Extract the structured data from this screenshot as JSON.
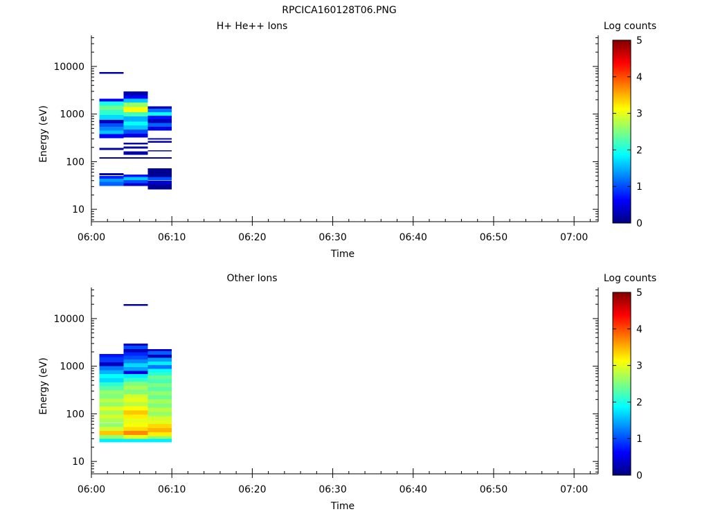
{
  "figure": {
    "title": "RPCICA160128T06.PNG"
  },
  "colorbar": {
    "label": "Log counts",
    "ticks": [
      "0",
      "1",
      "2",
      "3",
      "4",
      "5"
    ],
    "range": [
      0,
      5
    ],
    "colormap": [
      "#00007f",
      "#0000ff",
      "#007fff",
      "#00ffff",
      "#7fff7f",
      "#ffff00",
      "#ff7f00",
      "#ff0000",
      "#7f0000"
    ]
  },
  "chart_data": [
    {
      "type": "heatmap",
      "title": "H+ He++ Ions",
      "xlabel": "Time",
      "ylabel": "Energy (eV)",
      "yscale": "log",
      "ylim": [
        5.5,
        45000
      ],
      "xlim": [
        "06:00",
        "07:03"
      ],
      "xticks": [
        "06:00",
        "06:10",
        "06:20",
        "06:30",
        "06:40",
        "06:50",
        "07:00"
      ],
      "yticks": [
        "10",
        "100",
        "1000",
        "10000"
      ],
      "z_label": "Log counts",
      "z_range": [
        0,
        5
      ],
      "columns": [
        {
          "t_start": "06:01",
          "t_end": "06:04",
          "cells": [
            {
              "e_lo": 7000,
              "e_hi": 7600,
              "z": 0.2
            },
            {
              "e_lo": 1850,
              "e_hi": 2100,
              "z": 0.6
            },
            {
              "e_lo": 1500,
              "e_hi": 1850,
              "z": 2.0
            },
            {
              "e_lo": 1200,
              "e_hi": 1500,
              "z": 2.4
            },
            {
              "e_lo": 950,
              "e_hi": 1200,
              "z": 2.1
            },
            {
              "e_lo": 760,
              "e_hi": 950,
              "z": 1.7
            },
            {
              "e_lo": 640,
              "e_hi": 760,
              "z": 0.3
            },
            {
              "e_lo": 540,
              "e_hi": 640,
              "z": 1.0
            },
            {
              "e_lo": 450,
              "e_hi": 540,
              "z": 1.3
            },
            {
              "e_lo": 380,
              "e_hi": 450,
              "z": 1.6
            },
            {
              "e_lo": 310,
              "e_hi": 380,
              "z": 0.6
            },
            {
              "e_lo": 175,
              "e_hi": 195,
              "z": 0.2
            },
            {
              "e_lo": 116,
              "e_hi": 124,
              "z": 0.2
            },
            {
              "e_lo": 52,
              "e_hi": 57,
              "z": 0.3
            },
            {
              "e_lo": 44,
              "e_hi": 50,
              "z": 0.8
            },
            {
              "e_lo": 38,
              "e_hi": 44,
              "z": 1.4
            },
            {
              "e_lo": 31,
              "e_hi": 38,
              "z": 1.1
            }
          ]
        },
        {
          "t_start": "06:04",
          "t_end": "06:07",
          "cells": [
            {
              "e_lo": 2500,
              "e_hi": 3000,
              "z": 0.2
            },
            {
              "e_lo": 2100,
              "e_hi": 2500,
              "z": 0.6
            },
            {
              "e_lo": 1750,
              "e_hi": 2100,
              "z": 1.6
            },
            {
              "e_lo": 1400,
              "e_hi": 1750,
              "z": 2.6
            },
            {
              "e_lo": 1100,
              "e_hi": 1400,
              "z": 3.1
            },
            {
              "e_lo": 900,
              "e_hi": 1100,
              "z": 2.2
            },
            {
              "e_lo": 700,
              "e_hi": 900,
              "z": 1.5
            },
            {
              "e_lo": 580,
              "e_hi": 700,
              "z": 1.9
            },
            {
              "e_lo": 470,
              "e_hi": 580,
              "z": 1.6
            },
            {
              "e_lo": 390,
              "e_hi": 470,
              "z": 1.0
            },
            {
              "e_lo": 320,
              "e_hi": 390,
              "z": 0.5
            },
            {
              "e_lo": 230,
              "e_hi": 250,
              "z": 0.2
            },
            {
              "e_lo": 190,
              "e_hi": 210,
              "z": 0.2
            },
            {
              "e_lo": 140,
              "e_hi": 165,
              "z": 0.2
            },
            {
              "e_lo": 116,
              "e_hi": 124,
              "z": 0.2
            },
            {
              "e_lo": 48,
              "e_hi": 54,
              "z": 0.7
            },
            {
              "e_lo": 41,
              "e_hi": 48,
              "z": 1.6
            },
            {
              "e_lo": 35,
              "e_hi": 41,
              "z": 1.0
            },
            {
              "e_lo": 31,
              "e_hi": 35,
              "z": 0.4
            }
          ]
        },
        {
          "t_start": "06:07",
          "t_end": "06:10",
          "cells": [
            {
              "e_lo": 1300,
              "e_hi": 1450,
              "z": 0.3
            },
            {
              "e_lo": 1100,
              "e_hi": 1300,
              "z": 1.2
            },
            {
              "e_lo": 920,
              "e_hi": 1100,
              "z": 1.9
            },
            {
              "e_lo": 780,
              "e_hi": 920,
              "z": 0.7
            },
            {
              "e_lo": 650,
              "e_hi": 780,
              "z": 0.3
            },
            {
              "e_lo": 540,
              "e_hi": 650,
              "z": 1.1
            },
            {
              "e_lo": 450,
              "e_hi": 540,
              "z": 0.5
            },
            {
              "e_lo": 290,
              "e_hi": 310,
              "z": 0.2
            },
            {
              "e_lo": 250,
              "e_hi": 270,
              "z": 0.2
            },
            {
              "e_lo": 165,
              "e_hi": 172,
              "z": 0.3
            },
            {
              "e_lo": 116,
              "e_hi": 124,
              "z": 0.2
            },
            {
              "e_lo": 48,
              "e_hi": 72,
              "z": 0.1
            },
            {
              "e_lo": 40,
              "e_hi": 48,
              "z": 1.0
            },
            {
              "e_lo": 33,
              "e_hi": 40,
              "z": 0.4
            },
            {
              "e_lo": 26,
              "e_hi": 33,
              "z": 0.1
            }
          ]
        }
      ]
    },
    {
      "type": "heatmap",
      "title": "Other Ions",
      "xlabel": "Time",
      "ylabel": "Energy (eV)",
      "yscale": "log",
      "ylim": [
        5.5,
        45000
      ],
      "xlim": [
        "06:00",
        "07:03"
      ],
      "xticks": [
        "06:00",
        "06:10",
        "06:20",
        "06:30",
        "06:40",
        "06:50",
        "07:00"
      ],
      "yticks": [
        "10",
        "100",
        "1000",
        "10000"
      ],
      "z_label": "Log counts",
      "z_range": [
        0,
        5
      ],
      "columns": [
        {
          "t_start": "06:01",
          "t_end": "06:04",
          "cells": [
            {
              "e_lo": 1550,
              "e_hi": 1800,
              "z": 0.7
            },
            {
              "e_lo": 1200,
              "e_hi": 1550,
              "z": 0.9
            },
            {
              "e_lo": 1000,
              "e_hi": 1200,
              "z": 0.3
            },
            {
              "e_lo": 820,
              "e_hi": 1000,
              "z": 1.2
            },
            {
              "e_lo": 680,
              "e_hi": 820,
              "z": 1.5
            },
            {
              "e_lo": 560,
              "e_hi": 680,
              "z": 1.9
            },
            {
              "e_lo": 460,
              "e_hi": 560,
              "z": 1.7
            },
            {
              "e_lo": 380,
              "e_hi": 460,
              "z": 2.1
            },
            {
              "e_lo": 310,
              "e_hi": 380,
              "z": 2.3
            },
            {
              "e_lo": 255,
              "e_hi": 310,
              "z": 2.6
            },
            {
              "e_lo": 210,
              "e_hi": 255,
              "z": 2.5
            },
            {
              "e_lo": 172,
              "e_hi": 210,
              "z": 2.8
            },
            {
              "e_lo": 142,
              "e_hi": 172,
              "z": 2.6
            },
            {
              "e_lo": 117,
              "e_hi": 142,
              "z": 3.0
            },
            {
              "e_lo": 96,
              "e_hi": 117,
              "z": 2.7
            },
            {
              "e_lo": 79,
              "e_hi": 96,
              "z": 2.9
            },
            {
              "e_lo": 65,
              "e_hi": 79,
              "z": 2.7
            },
            {
              "e_lo": 53,
              "e_hi": 65,
              "z": 2.6
            },
            {
              "e_lo": 44,
              "e_hi": 53,
              "z": 2.9
            },
            {
              "e_lo": 36,
              "e_hi": 44,
              "z": 3.4
            },
            {
              "e_lo": 30,
              "e_hi": 36,
              "z": 2.6
            },
            {
              "e_lo": 25,
              "e_hi": 30,
              "z": 1.8
            }
          ]
        },
        {
          "t_start": "06:04",
          "t_end": "06:07",
          "cells": [
            {
              "e_lo": 18500,
              "e_hi": 20000,
              "z": 0.2
            },
            {
              "e_lo": 2700,
              "e_hi": 3000,
              "z": 0.3
            },
            {
              "e_lo": 2300,
              "e_hi": 2700,
              "z": 1.0
            },
            {
              "e_lo": 1950,
              "e_hi": 2300,
              "z": 0.3
            },
            {
              "e_lo": 1650,
              "e_hi": 1950,
              "z": 0.8
            },
            {
              "e_lo": 1380,
              "e_hi": 1650,
              "z": 1.0
            },
            {
              "e_lo": 1150,
              "e_hi": 1380,
              "z": 1.3
            },
            {
              "e_lo": 960,
              "e_hi": 1150,
              "z": 1.7
            },
            {
              "e_lo": 800,
              "e_hi": 960,
              "z": 1.4
            },
            {
              "e_lo": 680,
              "e_hi": 800,
              "z": 0.5
            },
            {
              "e_lo": 570,
              "e_hi": 680,
              "z": 1.8
            },
            {
              "e_lo": 470,
              "e_hi": 570,
              "z": 2.1
            },
            {
              "e_lo": 390,
              "e_hi": 470,
              "z": 2.5
            },
            {
              "e_lo": 320,
              "e_hi": 390,
              "z": 2.7
            },
            {
              "e_lo": 260,
              "e_hi": 320,
              "z": 2.5
            },
            {
              "e_lo": 215,
              "e_hi": 260,
              "z": 2.9
            },
            {
              "e_lo": 175,
              "e_hi": 215,
              "z": 3.0
            },
            {
              "e_lo": 145,
              "e_hi": 175,
              "z": 2.8
            },
            {
              "e_lo": 118,
              "e_hi": 145,
              "z": 3.1
            },
            {
              "e_lo": 97,
              "e_hi": 118,
              "z": 3.4
            },
            {
              "e_lo": 80,
              "e_hi": 97,
              "z": 3.2
            },
            {
              "e_lo": 65,
              "e_hi": 80,
              "z": 3.0
            },
            {
              "e_lo": 53,
              "e_hi": 65,
              "z": 3.1
            },
            {
              "e_lo": 44,
              "e_hi": 53,
              "z": 3.3
            },
            {
              "e_lo": 36,
              "e_hi": 44,
              "z": 3.7
            },
            {
              "e_lo": 30,
              "e_hi": 36,
              "z": 3.0
            },
            {
              "e_lo": 25,
              "e_hi": 30,
              "z": 1.8
            }
          ]
        },
        {
          "t_start": "06:07",
          "t_end": "06:10",
          "cells": [
            {
              "e_lo": 2050,
              "e_hi": 2300,
              "z": 0.4
            },
            {
              "e_lo": 1750,
              "e_hi": 2050,
              "z": 1.1
            },
            {
              "e_lo": 1500,
              "e_hi": 1750,
              "z": 0.3
            },
            {
              "e_lo": 1250,
              "e_hi": 1500,
              "z": 1.4
            },
            {
              "e_lo": 1050,
              "e_hi": 1250,
              "z": 1.8
            },
            {
              "e_lo": 880,
              "e_hi": 1050,
              "z": 1.2
            },
            {
              "e_lo": 760,
              "e_hi": 880,
              "z": 1.9
            },
            {
              "e_lo": 640,
              "e_hi": 760,
              "z": 2.1
            },
            {
              "e_lo": 530,
              "e_hi": 640,
              "z": 2.4
            },
            {
              "e_lo": 440,
              "e_hi": 530,
              "z": 2.2
            },
            {
              "e_lo": 360,
              "e_hi": 440,
              "z": 2.5
            },
            {
              "e_lo": 300,
              "e_hi": 360,
              "z": 2.3
            },
            {
              "e_lo": 245,
              "e_hi": 300,
              "z": 2.6
            },
            {
              "e_lo": 200,
              "e_hi": 245,
              "z": 2.4
            },
            {
              "e_lo": 165,
              "e_hi": 200,
              "z": 2.7
            },
            {
              "e_lo": 135,
              "e_hi": 165,
              "z": 2.5
            },
            {
              "e_lo": 110,
              "e_hi": 135,
              "z": 2.8
            },
            {
              "e_lo": 90,
              "e_hi": 110,
              "z": 2.6
            },
            {
              "e_lo": 74,
              "e_hi": 90,
              "z": 2.9
            },
            {
              "e_lo": 61,
              "e_hi": 74,
              "z": 3.0
            },
            {
              "e_lo": 50,
              "e_hi": 61,
              "z": 3.3
            },
            {
              "e_lo": 41,
              "e_hi": 50,
              "z": 3.5
            },
            {
              "e_lo": 34,
              "e_hi": 41,
              "z": 3.2
            },
            {
              "e_lo": 30,
              "e_hi": 34,
              "z": 2.6
            },
            {
              "e_lo": 25,
              "e_hi": 30,
              "z": 1.8
            }
          ]
        }
      ]
    }
  ]
}
